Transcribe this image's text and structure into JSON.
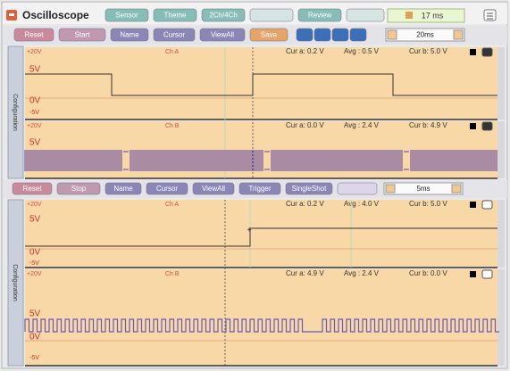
{
  "header": {
    "title": "Oscilloscope",
    "tabs": [
      "Sensor",
      "Theme",
      "2Ch/4Ch",
      "Review"
    ],
    "time": "17 ms"
  },
  "top_toolbar": {
    "buttons": [
      "Reset",
      "Start",
      "Name",
      "Cursor",
      "ViewAll",
      "Save"
    ],
    "timebase": "20ms"
  },
  "bottom_toolbar": {
    "buttons": [
      "Reset",
      "Stop",
      "Name",
      "Cursor",
      "ViewAll",
      "Trigger",
      "SingleShot"
    ],
    "timebase": "5ms"
  },
  "side_labels": [
    "Configuration",
    "Configuration"
  ],
  "panels": [
    {
      "channel": "Ch A",
      "range": "+20V",
      "levels": [
        "5V",
        "0V",
        "-5V"
      ],
      "readouts": [
        "Cur a: 0.2 V",
        "Avg : 0.5 V",
        "Cur b: 5.0 V"
      ]
    },
    {
      "channel": "Ch B",
      "range": "+20V",
      "levels": [
        "5V"
      ],
      "readouts": [
        "Cur a: 0.0 V",
        "Avg : 2.4 V",
        "Cur b: 4.9 V"
      ]
    },
    {
      "channel": "Ch A",
      "range": "+20V",
      "levels": [
        "5V",
        "0V",
        "-5V"
      ],
      "readouts": [
        "Cur a: 0.2 V",
        "Avg : 4.0 V",
        "Cur b: 5.0 V"
      ]
    },
    {
      "channel": "Ch B",
      "range": "+20V",
      "levels": [
        "5V",
        "0V",
        "-5V"
      ],
      "readouts": [
        "Cur a: 4.9 V",
        "Avg : 2.4 V",
        "Cur b: 0.0 V"
      ]
    }
  ]
}
